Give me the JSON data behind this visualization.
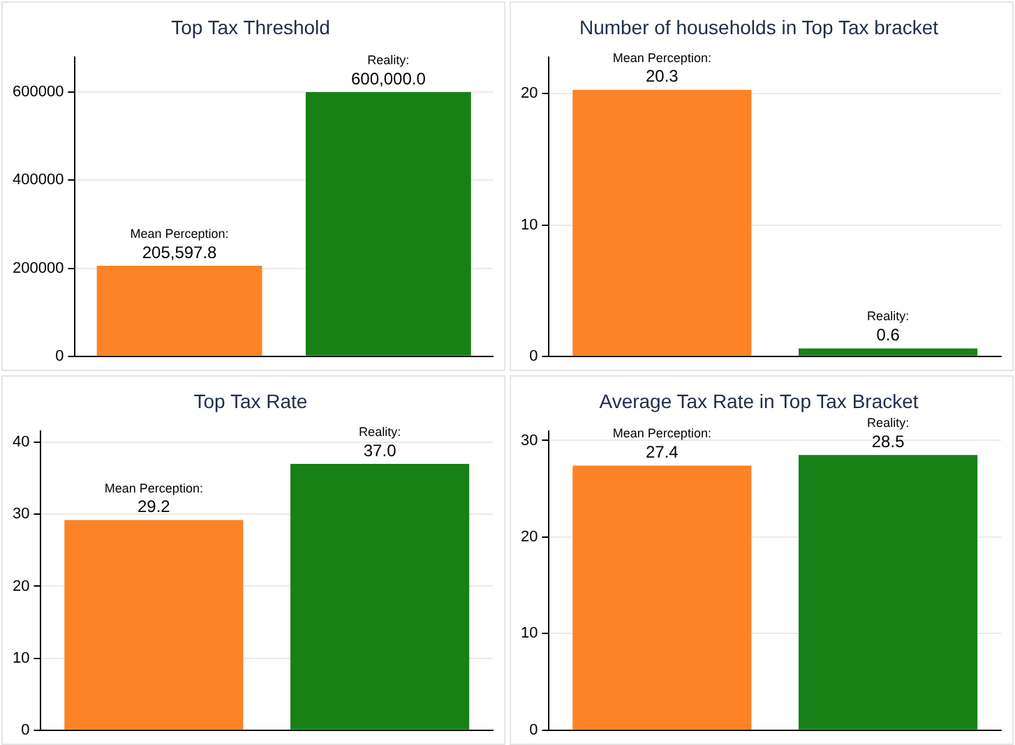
{
  "chart_data": [
    {
      "type": "bar",
      "title": "Top Tax Threshold",
      "categories": [
        null,
        null
      ],
      "values": [
        205597.8,
        600000.0
      ],
      "value_labels": [
        "Mean Perception:\n205,597.8",
        "Reality:\n600,000.0"
      ],
      "colors": [
        "#fd8326",
        "#178017"
      ],
      "ylim": [
        0,
        680000
      ],
      "yticks": [
        0,
        200000,
        400000,
        600000
      ],
      "grid": "y",
      "tick_labels": "y"
    },
    {
      "type": "bar",
      "title": "Number of households in Top Tax bracket",
      "categories": [
        null,
        null
      ],
      "values": [
        20.3,
        0.6
      ],
      "value_labels": [
        "Mean Perception:\n20.3",
        "Reality:\n0.6"
      ],
      "colors": [
        "#fd8326",
        "#178017"
      ],
      "ylim": [
        0,
        22.8
      ],
      "yticks": [
        0,
        10,
        20
      ],
      "grid": "y",
      "tick_labels": "y"
    },
    {
      "type": "bar",
      "title": "Top Tax Rate",
      "categories": [
        null,
        null
      ],
      "values": [
        29.2,
        37.0
      ],
      "value_labels": [
        "Mean Perception:\n29.2",
        "Reality:\n37.0"
      ],
      "colors": [
        "#fd8326",
        "#178017"
      ],
      "ylim": [
        0,
        41.6
      ],
      "yticks": [
        0,
        10,
        20,
        30,
        40
      ],
      "grid": "y",
      "tick_labels": "y"
    },
    {
      "type": "bar",
      "title": "Average Tax Rate in Top Tax Bracket",
      "categories": [
        null,
        null
      ],
      "values": [
        27.4,
        28.5
      ],
      "value_labels": [
        "Mean Perception:\n27.4",
        "Reality:\n28.5"
      ],
      "colors": [
        "#fd8326",
        "#178017"
      ],
      "ylim": [
        0,
        31.0
      ],
      "yticks": [
        0,
        10,
        20,
        30
      ],
      "grid": "y",
      "tick_labels": "y"
    }
  ]
}
